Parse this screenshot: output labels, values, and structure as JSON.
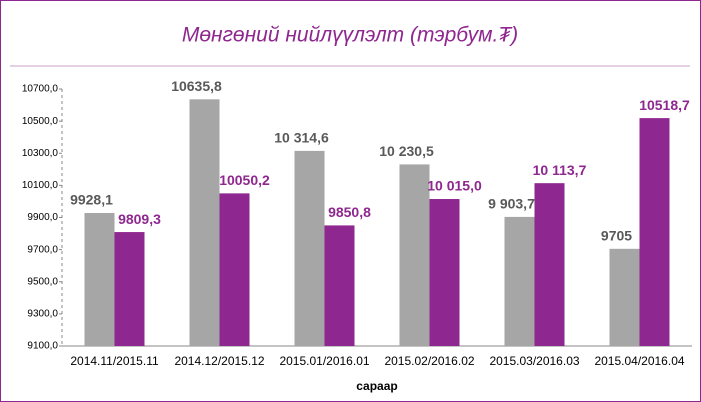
{
  "chart_data": {
    "type": "bar",
    "title": "Мөнгөний нийлүүлэлт (тэрбум.₮)",
    "x_label": "сараар",
    "categories": [
      "2014.11/2015.11",
      "2014.12/2015.12",
      "2015.01/2016.01",
      "2015.02/2016.02",
      "2015.03/2016.03",
      "2015.04/2016.04"
    ],
    "series": [
      {
        "color": "#a6a6a6",
        "values": [
          9928.1,
          10635.8,
          10314.6,
          10230.5,
          9903.7,
          9705
        ],
        "value_labels": [
          "9928,1",
          "10635,8",
          "10 314,6",
          "10 230,5",
          "9 903,7",
          "9705"
        ]
      },
      {
        "color": "#8e278f",
        "values": [
          9809.3,
          10050.2,
          9850.8,
          10015.0,
          10113.7,
          10518.7
        ],
        "value_labels": [
          "9809,3",
          "10050,2",
          "9850,8",
          "10 015,0",
          "10 113,7",
          "10518,7"
        ]
      }
    ],
    "ylim": [
      9100,
      10700
    ],
    "yticks": [
      {
        "value": 9100,
        "label": "9100,0"
      },
      {
        "value": 9300,
        "label": "9300,0"
      },
      {
        "value": 9500,
        "label": "9500,0"
      },
      {
        "value": 9700,
        "label": "9700,0"
      },
      {
        "value": 9900,
        "label": "9900,0"
      },
      {
        "value": 10100,
        "label": "10100,0"
      },
      {
        "value": 10300,
        "label": "10300,0"
      },
      {
        "value": 10500,
        "label": "10500,0"
      },
      {
        "value": 10700,
        "label": "10700,0"
      }
    ],
    "grid": false
  }
}
